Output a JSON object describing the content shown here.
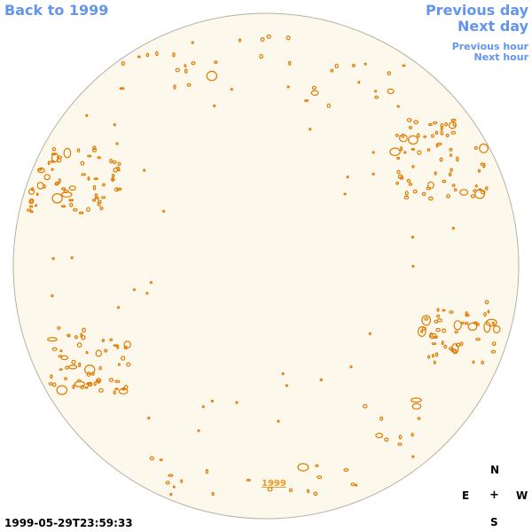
{
  "nav": {
    "back_year": "Back to 1999",
    "previous_day": "Previous day",
    "next_day": "Next day",
    "previous_hour": "Previous hour",
    "next_hour": "Next hour"
  },
  "disk": {
    "year_label": "1999"
  },
  "timestamp": "1999-05-29T23:59:33",
  "compass": {
    "north": "N",
    "east": "E",
    "center": "+",
    "west": "W",
    "south": "S"
  },
  "colors": {
    "link": "#6495ed",
    "disk_fill": "#fdf8ec",
    "disk_edge": "#b8b0a4",
    "contour": "#e07a00"
  }
}
